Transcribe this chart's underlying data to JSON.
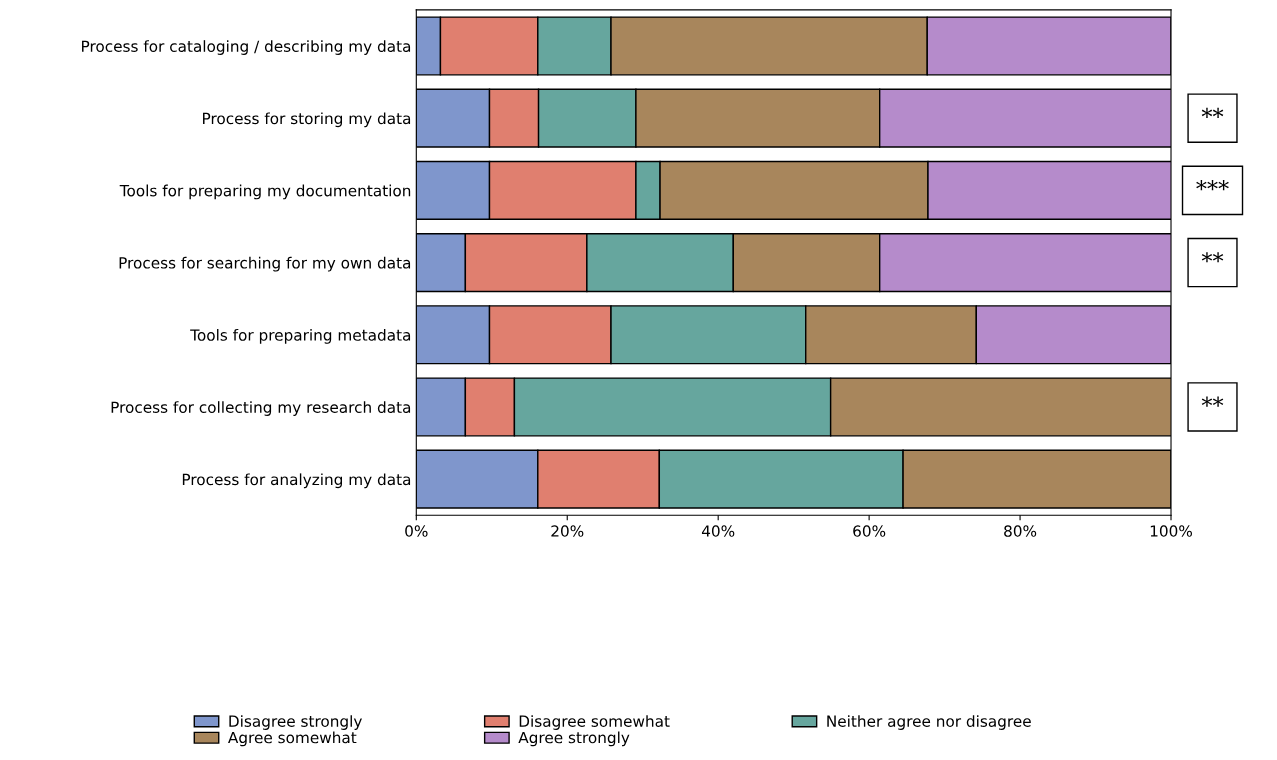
{
  "chart_data": {
    "type": "bar",
    "orientation": "horizontal",
    "stacked": true,
    "categories": [
      "Process for cataloging / describing my data",
      "Process for storing my data",
      "Tools for preparing my documentation",
      "Process for searching for my own data",
      "Tools for preparing metadata",
      "Process for collecting my research data",
      "Process for analyzing my data"
    ],
    "series": [
      {
        "name": "Disagree strongly",
        "color": "#7f96cc",
        "values": [
          3.2,
          9.7,
          9.7,
          6.5,
          9.7,
          6.5,
          16.1
        ]
      },
      {
        "name": "Disagree somewhat",
        "color": "#e07f6f",
        "values": [
          12.9,
          6.5,
          19.4,
          16.1,
          16.1,
          6.5,
          16.1
        ]
      },
      {
        "name": "Neither agree nor disagree",
        "color": "#66a69e",
        "values": [
          9.7,
          12.9,
          3.2,
          19.4,
          25.8,
          41.9,
          32.3
        ]
      },
      {
        "name": "Agree somewhat",
        "color": "#a8865c",
        "values": [
          41.9,
          32.3,
          35.5,
          19.4,
          22.6,
          45.2,
          35.5
        ]
      },
      {
        "name": "Agree strongly",
        "color": "#b58bcb",
        "values": [
          32.3,
          38.7,
          32.3,
          38.7,
          25.8,
          null,
          null
        ]
      }
    ],
    "xlim": [
      0,
      100
    ],
    "xticks": [
      {
        "value": 0,
        "label": "0%"
      },
      {
        "value": 20,
        "label": "20%"
      },
      {
        "value": 40,
        "label": "40%"
      },
      {
        "value": 60,
        "label": "60%"
      },
      {
        "value": 80,
        "label": "80%"
      },
      {
        "value": 100,
        "label": "100%"
      }
    ],
    "annotations": [
      "**",
      "***",
      "**",
      "**"
    ],
    "grid": false,
    "legend": "bottom"
  }
}
